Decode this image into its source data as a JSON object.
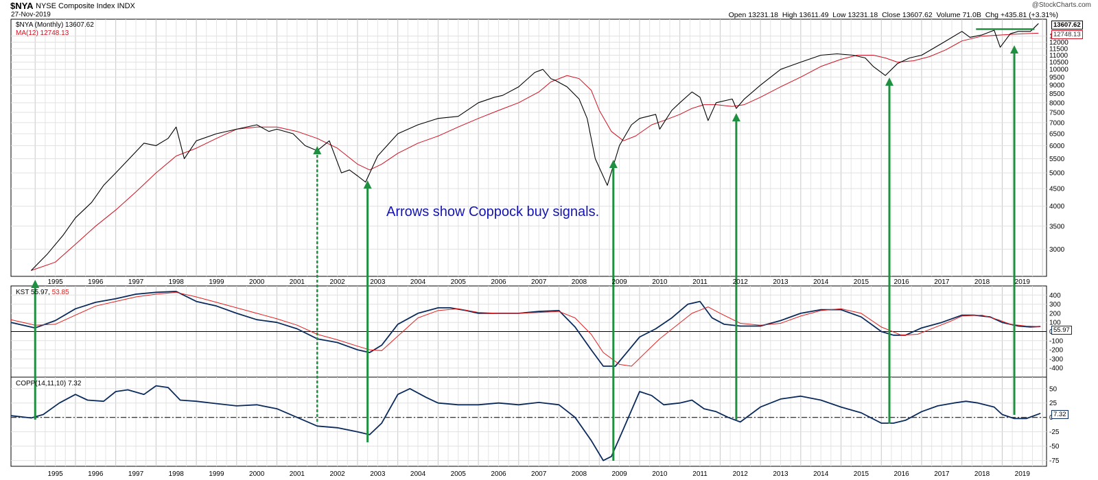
{
  "header": {
    "symbol": "$NYA",
    "index_name": "NYSE Composite Index INDX",
    "date": "27-Nov-2019",
    "brand": "@StockCharts.com",
    "open_label": "Open",
    "open": "13231.18",
    "high_label": "High",
    "high": "13611.49",
    "low_label": "Low",
    "low": "13231.18",
    "close_label": "Close",
    "close": "13607.62",
    "volume_label": "Volume",
    "volume": "71.0B",
    "chg_label": "Chg",
    "chg": "+435.81 (+3.31%)"
  },
  "annotation": "Arrows show Coppock buy signals.",
  "colors": {
    "price": "#000000",
    "ma": "#d01020",
    "kst": "#0a2a5c",
    "signal": "#e02020",
    "arrow": "#1e9040",
    "annotation": "#1414b4"
  },
  "chart_data": [
    {
      "type": "line",
      "panel": "price",
      "scale": "log",
      "legend": [
        "$NYA (Monthly) 13607.62",
        "MA(12) 12748.13"
      ],
      "last_value_labels": [
        "13607.62",
        "12748.13"
      ],
      "ylim": [
        2500,
        14000
      ],
      "y_ticks": [
        3000,
        3500,
        4000,
        4500,
        5000,
        5500,
        6000,
        6500,
        7000,
        7500,
        8000,
        8500,
        9000,
        9500,
        10000,
        10500,
        11000,
        11500,
        12000,
        12500
      ],
      "series": [
        {
          "name": "$NYA (Monthly)",
          "color": "#000000",
          "x": [
            1994.9,
            1995.3,
            1995.7,
            1996.0,
            1996.4,
            1996.7,
            1997.0,
            1997.4,
            1997.7,
            1998.0,
            1998.3,
            1998.5,
            1998.7,
            1999.0,
            1999.5,
            2000.0,
            2000.5,
            2000.8,
            2001.0,
            2001.4,
            2001.7,
            2002.0,
            2002.3,
            2002.6,
            2002.8,
            2003.0,
            2003.2,
            2003.5,
            2004.0,
            2004.5,
            2005.0,
            2005.5,
            2006.0,
            2006.4,
            2006.6,
            2007.0,
            2007.4,
            2007.6,
            2007.8,
            2007.9,
            2008.2,
            2008.5,
            2008.7,
            2008.9,
            2009.2,
            2009.5,
            2009.8,
            2010.0,
            2010.4,
            2010.5,
            2010.8,
            2011.0,
            2011.3,
            2011.5,
            2011.7,
            2011.9,
            2012.3,
            2012.4,
            2012.6,
            2013.0,
            2013.5,
            2014.0,
            2014.5,
            2014.9,
            2015.3,
            2015.6,
            2015.8,
            2016.1,
            2016.4,
            2016.7,
            2017.0,
            2017.5,
            2018.0,
            2018.2,
            2018.5,
            2018.8,
            2018.95,
            2019.2,
            2019.4,
            2019.7,
            2019.9
          ],
          "y": [
            2600,
            2900,
            3300,
            3700,
            4100,
            4600,
            5000,
            5600,
            6100,
            6000,
            6300,
            6800,
            5500,
            6200,
            6500,
            6700,
            6900,
            6600,
            6700,
            6500,
            6000,
            5800,
            6200,
            5000,
            5100,
            4900,
            4700,
            5600,
            6500,
            6900,
            7200,
            7300,
            8000,
            8300,
            8400,
            8900,
            9800,
            10000,
            9400,
            9300,
            8900,
            8200,
            7200,
            5500,
            4600,
            6000,
            6900,
            7200,
            7400,
            6700,
            7600,
            8000,
            8600,
            8300,
            7100,
            8000,
            8200,
            7700,
            8200,
            9000,
            10000,
            10500,
            11000,
            11100,
            11000,
            10800,
            10200,
            9600,
            10400,
            10800,
            11000,
            11900,
            12900,
            12400,
            12600,
            13000,
            11600,
            12700,
            12900,
            12900,
            13600
          ]
        },
        {
          "name": "MA(12)",
          "color": "#d01020",
          "x": [
            1994.9,
            1995.5,
            1996.0,
            1996.5,
            1997.0,
            1997.5,
            1998.0,
            1998.5,
            1999.0,
            1999.5,
            2000.0,
            2000.5,
            2001.0,
            2001.5,
            2002.0,
            2002.5,
            2003.0,
            2003.3,
            2003.6,
            2004.0,
            2004.5,
            2005.0,
            2005.5,
            2006.0,
            2006.5,
            2007.0,
            2007.5,
            2007.8,
            2008.2,
            2008.5,
            2008.8,
            2009.0,
            2009.3,
            2009.6,
            2009.9,
            2010.3,
            2010.6,
            2011.0,
            2011.3,
            2011.6,
            2011.9,
            2012.3,
            2012.6,
            2013.0,
            2013.5,
            2014.0,
            2014.5,
            2015.0,
            2015.4,
            2015.8,
            2016.1,
            2016.4,
            2016.8,
            2017.2,
            2017.6,
            2018.0,
            2018.5,
            2019.0,
            2019.5,
            2019.9
          ],
          "y": [
            2600,
            2750,
            3100,
            3500,
            3900,
            4400,
            5000,
            5600,
            5900,
            6300,
            6700,
            6800,
            6800,
            6600,
            6300,
            5900,
            5300,
            5100,
            5300,
            5700,
            6100,
            6400,
            6800,
            7200,
            7600,
            8000,
            8600,
            9200,
            9600,
            9400,
            8700,
            7600,
            6600,
            6200,
            6400,
            6900,
            7100,
            7400,
            7700,
            7900,
            7900,
            7800,
            7900,
            8300,
            8900,
            9500,
            10200,
            10700,
            11000,
            11000,
            10800,
            10500,
            10600,
            10900,
            11400,
            12100,
            12500,
            12600,
            12700,
            12750
          ]
        }
      ]
    },
    {
      "type": "line",
      "panel": "kst",
      "legend": [
        "KST 55.97,",
        "53.85"
      ],
      "last_value_labels": [
        "55.97"
      ],
      "ylim": [
        -500,
        500
      ],
      "y_ticks": [
        -400,
        -300,
        -200,
        -100,
        0,
        100,
        200,
        300,
        400
      ],
      "series": [
        {
          "name": "KST",
          "color": "#0a2a5c",
          "x": [
            1994.4,
            1995.0,
            1995.5,
            1996.0,
            1996.5,
            1997.0,
            1997.5,
            1998.0,
            1998.5,
            1999.0,
            1999.5,
            2000.0,
            2000.5,
            2001.0,
            2001.5,
            2002.0,
            2002.5,
            2003.0,
            2003.3,
            2003.6,
            2004.0,
            2004.5,
            2005.0,
            2005.3,
            2005.7,
            2006.0,
            2006.5,
            2007.0,
            2007.5,
            2008.0,
            2008.4,
            2008.8,
            2009.1,
            2009.4,
            2009.7,
            2010.0,
            2010.4,
            2010.8,
            2011.2,
            2011.5,
            2011.8,
            2012.1,
            2012.5,
            2013.0,
            2013.5,
            2014.0,
            2014.5,
            2015.0,
            2015.5,
            2016.0,
            2016.3,
            2016.6,
            2017.0,
            2017.5,
            2018.0,
            2018.3,
            2018.7,
            2019.0,
            2019.4,
            2019.7,
            2019.95
          ],
          "y": [
            100,
            40,
            120,
            250,
            320,
            360,
            410,
            430,
            440,
            330,
            280,
            200,
            130,
            100,
            30,
            -80,
            -120,
            -200,
            -230,
            -150,
            80,
            200,
            260,
            260,
            230,
            200,
            200,
            200,
            220,
            230,
            50,
            -200,
            -380,
            -380,
            -220,
            -60,
            30,
            150,
            300,
            330,
            150,
            80,
            60,
            60,
            120,
            200,
            240,
            240,
            160,
            0,
            -40,
            -40,
            40,
            100,
            180,
            180,
            160,
            100,
            60,
            50,
            56
          ]
        },
        {
          "name": "Signal",
          "color": "#e02020",
          "x": [
            1994.4,
            1995.0,
            1995.5,
            1996.0,
            1996.5,
            1997.0,
            1997.5,
            1998.0,
            1998.5,
            1999.0,
            1999.5,
            2000.0,
            2000.5,
            2001.0,
            2001.5,
            2002.0,
            2002.5,
            2003.0,
            2003.3,
            2003.6,
            2004.0,
            2004.5,
            2005.0,
            2005.5,
            2006.0,
            2006.5,
            2007.0,
            2007.5,
            2008.0,
            2008.4,
            2008.8,
            2009.1,
            2009.5,
            2009.8,
            2010.1,
            2010.5,
            2010.9,
            2011.3,
            2011.7,
            2012.0,
            2012.5,
            2013.0,
            2013.5,
            2014.0,
            2014.5,
            2015.0,
            2015.5,
            2016.0,
            2016.5,
            2016.9,
            2017.3,
            2017.7,
            2018.0,
            2018.5,
            2018.9,
            2019.2,
            2019.6,
            2019.95
          ],
          "y": [
            130,
            70,
            80,
            180,
            280,
            330,
            380,
            410,
            430,
            380,
            320,
            260,
            200,
            140,
            70,
            -30,
            -90,
            -160,
            -200,
            -210,
            -50,
            150,
            230,
            250,
            210,
            200,
            200,
            210,
            220,
            150,
            -30,
            -230,
            -360,
            -380,
            -250,
            -80,
            60,
            200,
            270,
            200,
            90,
            70,
            90,
            170,
            230,
            250,
            200,
            50,
            -40,
            -30,
            40,
            110,
            170,
            180,
            130,
            80,
            60,
            54
          ]
        }
      ]
    },
    {
      "type": "line",
      "panel": "coppock",
      "legend": [
        "COPP(14,11,10) 7.32"
      ],
      "last_value_labels": [
        "7.32"
      ],
      "ylim": [
        -85,
        70
      ],
      "y_ticks": [
        -75,
        -50,
        -25,
        0,
        25,
        50
      ],
      "reference_line": 0,
      "series": [
        {
          "name": "COPP(14,11,10)",
          "color": "#0a2a5c",
          "x": [
            1994.4,
            1994.9,
            1995.2,
            1995.6,
            1996.0,
            1996.3,
            1996.7,
            1997.0,
            1997.3,
            1997.7,
            1998.0,
            1998.3,
            1998.6,
            1999.0,
            1999.5,
            2000.0,
            2000.5,
            2001.0,
            2001.5,
            2002.0,
            2002.5,
            2003.0,
            2003.3,
            2003.6,
            2004.0,
            2004.3,
            2004.7,
            2005.0,
            2005.5,
            2006.0,
            2006.5,
            2007.0,
            2007.5,
            2008.0,
            2008.4,
            2008.8,
            2009.1,
            2009.3,
            2009.6,
            2010.0,
            2010.3,
            2010.6,
            2011.0,
            2011.3,
            2011.6,
            2011.9,
            2012.2,
            2012.5,
            2013.0,
            2013.5,
            2014.0,
            2014.5,
            2015.0,
            2015.5,
            2016.0,
            2016.3,
            2016.6,
            2017.0,
            2017.4,
            2017.8,
            2018.1,
            2018.4,
            2018.8,
            2019.0,
            2019.3,
            2019.6,
            2019.95
          ],
          "y": [
            3,
            -1,
            5,
            25,
            40,
            30,
            28,
            45,
            48,
            40,
            55,
            52,
            30,
            28,
            24,
            20,
            22,
            15,
            0,
            -15,
            -18,
            -25,
            -30,
            -10,
            40,
            50,
            35,
            25,
            22,
            22,
            25,
            22,
            26,
            22,
            0,
            -40,
            -75,
            -68,
            -20,
            45,
            38,
            22,
            25,
            30,
            15,
            10,
            0,
            -8,
            18,
            32,
            37,
            30,
            18,
            8,
            -10,
            -10,
            -5,
            10,
            20,
            25,
            28,
            25,
            18,
            5,
            -2,
            -2,
            7
          ]
        }
      ]
    }
  ],
  "x_axis": {
    "year_labels": [
      "1995",
      "1996",
      "1997",
      "1998",
      "1999",
      "2000",
      "2001",
      "2002",
      "2003",
      "2004",
      "2005",
      "2006",
      "2007",
      "2008",
      "2009",
      "2010",
      "2011",
      "2012",
      "2013",
      "2014",
      "2015",
      "2016",
      "2017",
      "2018",
      "2019"
    ]
  },
  "buy_signals": [
    {
      "year": 1995.0,
      "style": "solid"
    },
    {
      "year": 2002.0,
      "style": "dashed"
    },
    {
      "year": 2003.25,
      "style": "solid"
    },
    {
      "year": 2009.35,
      "style": "solid"
    },
    {
      "year": 2012.4,
      "style": "solid"
    },
    {
      "year": 2016.2,
      "style": "solid"
    },
    {
      "year": 2019.3,
      "style": "solid"
    }
  ]
}
